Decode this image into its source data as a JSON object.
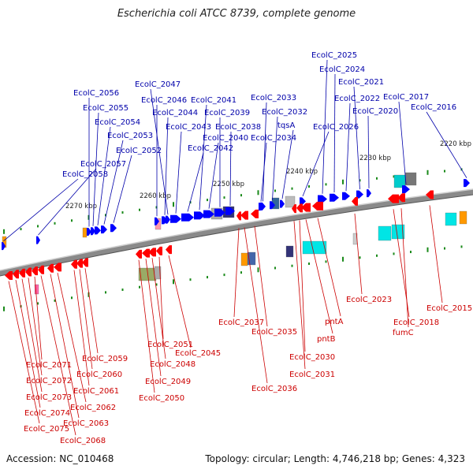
{
  "title": "Escherichia coli ATCC 8739, complete genome",
  "footer": {
    "accession": "Accession: NC_010468",
    "topology": "Topology: circular; Length: 4,746,218 bp; Genes: 4,323"
  },
  "colors": {
    "forward_gene": "#0000ff",
    "reverse_gene": "#ff0000",
    "forward_label": "#0000aa",
    "reverse_label": "#cc0000",
    "backbone": "#888888",
    "tick": "#1a8a1a",
    "cds_orange": "#ff9900",
    "cds_cyan": "#00e5e5",
    "cds_gray": "#999999"
  },
  "scale_labels": [
    "2220 kbp",
    "2230 kbp",
    "2240 kbp",
    "2250 kbp",
    "2260 kbp",
    "2270 kbp"
  ],
  "forward_genes": [
    "EcolC_2016",
    "EcolC_2017",
    "EcolC_2020",
    "EcolC_2021",
    "EcolC_2022",
    "EcolC_2024",
    "EcolC_2025",
    "EcolC_2026",
    "tqsA",
    "EcolC_2032",
    "EcolC_2033",
    "EcolC_2034",
    "EcolC_2038",
    "EcolC_2039",
    "EcolC_2040",
    "EcolC_2041",
    "EcolC_2042",
    "EcolC_2043",
    "EcolC_2044",
    "EcolC_2046",
    "EcolC_2047",
    "EcolC_2052",
    "EcolC_2053",
    "EcolC_2054",
    "EcolC_2055",
    "EcolC_2056",
    "EcolC_2057",
    "EcolC_2058"
  ],
  "reverse_genes": [
    "EcolC_2015",
    "EcolC_2018",
    "fumC",
    "EcolC_2023",
    "pntA",
    "pntB",
    "EcolC_2030",
    "EcolC_2031",
    "EcolC_2036",
    "EcolC_2035",
    "EcolC_2037",
    "EcolC_2045",
    "EcolC_2048",
    "EcolC_2049",
    "EcolC_2050",
    "EcolC_2051",
    "EcolC_2059",
    "EcolC_2060",
    "EcolC_2061",
    "EcolC_2062",
    "EcolC_2063",
    "EcolC_2068",
    "EcolC_2071",
    "EcolC_2072",
    "EcolC_2073",
    "EcolC_2074",
    "EcolC_2075"
  ]
}
